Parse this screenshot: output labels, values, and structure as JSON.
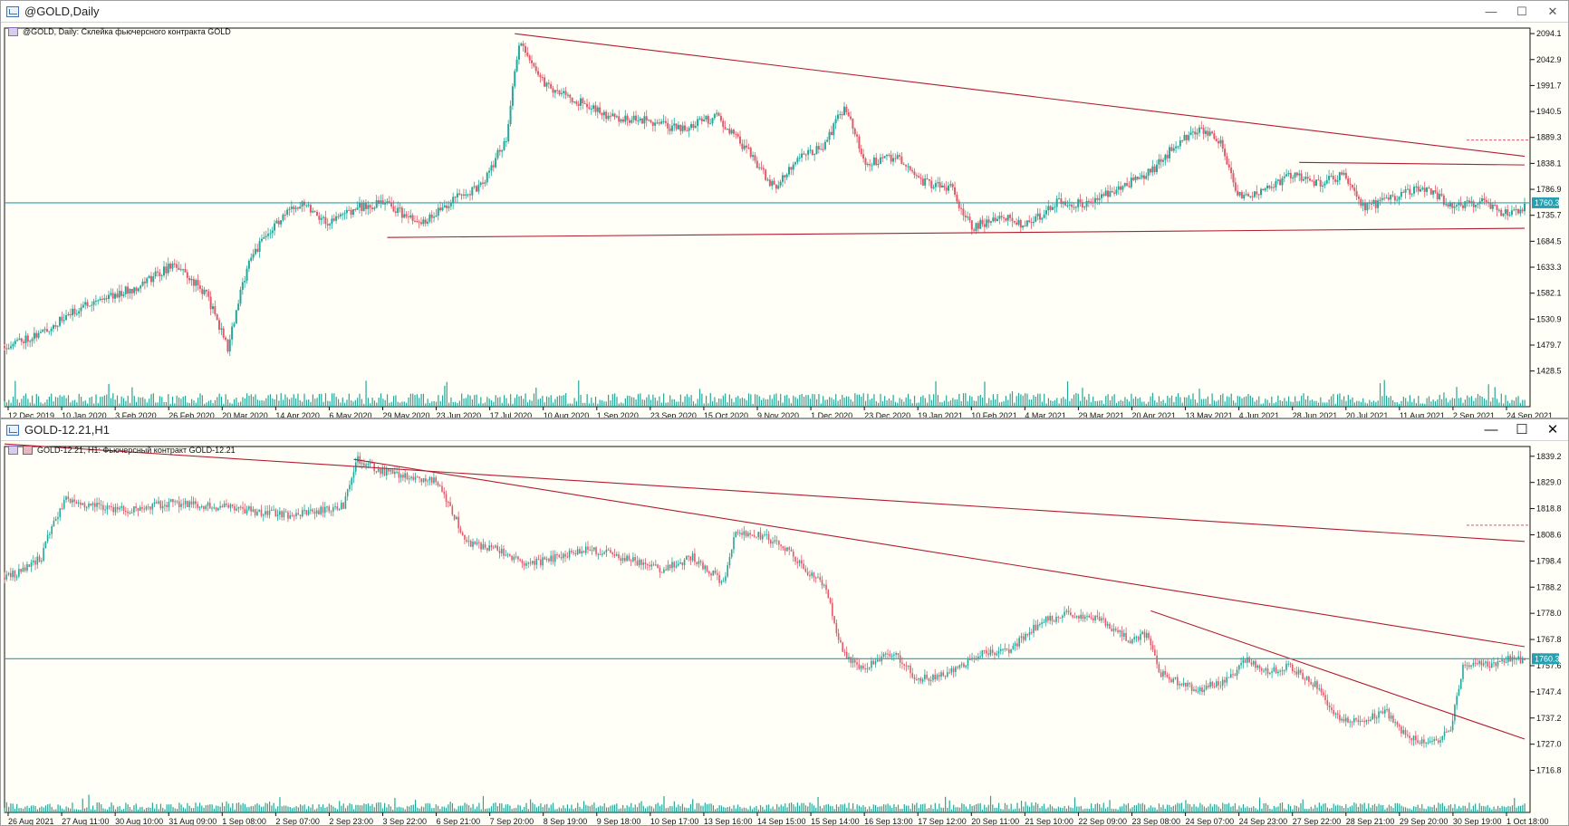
{
  "windows": [
    {
      "title": "@GOLD,Daily",
      "info_label": "@GOLD, Daily:  Склейка фьючерсного контракта GOLD",
      "controls": {
        "minimize": "—",
        "maximize": "☐",
        "close": "✕"
      }
    },
    {
      "title": "GOLD-12.21,H1",
      "info_label": "GOLD-12.21, H1:  Фьючерсный контракт GOLD-12.21",
      "controls": {
        "minimize": "—",
        "maximize": "☐",
        "close": "✕"
      }
    }
  ],
  "colors": {
    "background": "#fffff8",
    "bull": "#26a69a",
    "bear": "#e05a6a",
    "trendline": "#b01e30",
    "price_line": "#26a0b0",
    "price_tag": "#26a0b0",
    "volume": "#26a69a"
  },
  "chart_data": [
    {
      "type": "candlestick",
      "symbol": "@GOLD",
      "timeframe": "Daily",
      "y_ticks": [
        "2094.1",
        "2042.9",
        "1991.7",
        "1940.5",
        "1889.3",
        "1838.1",
        "1786.9",
        "1735.7",
        "1684.5",
        "1633.3",
        "1582.1",
        "1530.9",
        "1479.7",
        "1428.5"
      ],
      "ylim": [
        1410,
        2105
      ],
      "x_ticks": [
        "12 Dec 2019",
        "10 Jan 2020",
        "3 Feb 2020",
        "26 Feb 2020",
        "20 Mar 2020",
        "14 Apr 2020",
        "6 May 2020",
        "29 May 2020",
        "23 Jun 2020",
        "17 Jul 2020",
        "10 Aug 2020",
        "1 Sep 2020",
        "23 Sep 2020",
        "15 Oct 2020",
        "9 Nov 2020",
        "1 Dec 2020",
        "23 Dec 2020",
        "19 Jan 2021",
        "10 Feb 2021",
        "4 Mar 2021",
        "29 Mar 2021",
        "20 Apr 2021",
        "13 May 2021",
        "4 Jun 2021",
        "28 Jun 2021",
        "20 Jul 2021",
        "11 Aug 2021",
        "2 Sep 2021",
        "24 Sep 2021"
      ],
      "current_price": "1760.3",
      "close_path": [
        [
          0,
          1478
        ],
        [
          18,
          1505
        ],
        [
          40,
          1565
        ],
        [
          60,
          1590
        ],
        [
          80,
          1640
        ],
        [
          95,
          1580
        ],
        [
          105,
          1475
        ],
        [
          115,
          1650
        ],
        [
          128,
          1720
        ],
        [
          140,
          1765
        ],
        [
          152,
          1720
        ],
        [
          165,
          1750
        ],
        [
          180,
          1760
        ],
        [
          195,
          1715
        ],
        [
          210,
          1765
        ],
        [
          225,
          1795
        ],
        [
          236,
          1890
        ],
        [
          242,
          2075
        ],
        [
          255,
          1990
        ],
        [
          270,
          1960
        ],
        [
          285,
          1930
        ],
        [
          300,
          1925
        ],
        [
          318,
          1905
        ],
        [
          335,
          1930
        ],
        [
          350,
          1860
        ],
        [
          362,
          1790
        ],
        [
          372,
          1845
        ],
        [
          385,
          1870
        ],
        [
          395,
          1950
        ],
        [
          405,
          1840
        ],
        [
          420,
          1850
        ],
        [
          432,
          1800
        ],
        [
          445,
          1790
        ],
        [
          455,
          1710
        ],
        [
          468,
          1735
        ],
        [
          480,
          1715
        ],
        [
          495,
          1760
        ],
        [
          510,
          1760
        ],
        [
          525,
          1790
        ],
        [
          540,
          1825
        ],
        [
          552,
          1880
        ],
        [
          562,
          1905
        ],
        [
          572,
          1880
        ],
        [
          580,
          1775
        ],
        [
          592,
          1780
        ],
        [
          604,
          1815
        ],
        [
          618,
          1800
        ],
        [
          630,
          1815
        ],
        [
          640,
          1750
        ],
        [
          655,
          1775
        ],
        [
          668,
          1790
        ],
        [
          682,
          1750
        ],
        [
          695,
          1765
        ],
        [
          705,
          1740
        ],
        [
          715,
          1752
        ]
      ],
      "trendlines": [
        {
          "from": [
            240,
            2094
          ],
          "to": [
            715,
            1852
          ]
        },
        {
          "from": [
            180,
            1692
          ],
          "to": [
            715,
            1710
          ]
        },
        {
          "from": [
            609,
            1840
          ],
          "to": [
            715,
            1835
          ]
        }
      ]
    },
    {
      "type": "candlestick",
      "symbol": "GOLD-12.21",
      "timeframe": "H1",
      "y_ticks": [
        "1839.2",
        "1829.0",
        "1818.8",
        "1808.6",
        "1798.4",
        "1788.2",
        "1778.0",
        "1767.8",
        "1757.6",
        "1747.4",
        "1737.2",
        "1727.0",
        "1716.8"
      ],
      "ylim": [
        1711,
        1843
      ],
      "x_ticks": [
        "26 Aug 2021",
        "27 Aug 11:00",
        "30 Aug 10:00",
        "31 Aug 09:00",
        "1 Sep 08:00",
        "2 Sep 07:00",
        "2 Sep 23:00",
        "3 Sep 22:00",
        "6 Sep 21:00",
        "7 Sep 20:00",
        "8 Sep 19:00",
        "9 Sep 18:00",
        "10 Sep 17:00",
        "13 Sep 16:00",
        "14 Sep 15:00",
        "15 Sep 14:00",
        "16 Sep 13:00",
        "17 Sep 12:00",
        "20 Sep 11:00",
        "21 Sep 10:00",
        "22 Sep 09:00",
        "23 Sep 08:00",
        "24 Sep 07:00",
        "24 Sep 23:00",
        "27 Sep 22:00",
        "28 Sep 21:00",
        "29 Sep 20:00",
        "30 Sep 19:00",
        "1 Oct 18:00"
      ],
      "current_price": "1760.3",
      "close_path": [
        [
          0,
          1792
        ],
        [
          10,
          1795
        ],
        [
          18,
          1800
        ],
        [
          24,
          1814
        ],
        [
          30,
          1822
        ],
        [
          45,
          1820
        ],
        [
          60,
          1818
        ],
        [
          80,
          1821
        ],
        [
          100,
          1820
        ],
        [
          120,
          1818
        ],
        [
          140,
          1816
        ],
        [
          165,
          1820
        ],
        [
          172,
          1838
        ],
        [
          185,
          1833
        ],
        [
          200,
          1831
        ],
        [
          210,
          1830
        ],
        [
          218,
          1818
        ],
        [
          225,
          1805
        ],
        [
          240,
          1803
        ],
        [
          255,
          1797
        ],
        [
          270,
          1800
        ],
        [
          285,
          1803
        ],
        [
          300,
          1800
        ],
        [
          320,
          1795
        ],
        [
          335,
          1800
        ],
        [
          350,
          1790
        ],
        [
          356,
          1810
        ],
        [
          370,
          1808
        ],
        [
          380,
          1803
        ],
        [
          390,
          1795
        ],
        [
          400,
          1788
        ],
        [
          408,
          1762
        ],
        [
          418,
          1756
        ],
        [
          432,
          1763
        ],
        [
          445,
          1752
        ],
        [
          460,
          1755
        ],
        [
          475,
          1762
        ],
        [
          490,
          1764
        ],
        [
          505,
          1775
        ],
        [
          520,
          1778
        ],
        [
          535,
          1775
        ],
        [
          548,
          1767
        ],
        [
          556,
          1770
        ],
        [
          562,
          1755
        ],
        [
          580,
          1748
        ],
        [
          595,
          1752
        ],
        [
          605,
          1760
        ],
        [
          615,
          1755
        ],
        [
          625,
          1758
        ],
        [
          638,
          1750
        ],
        [
          648,
          1738
        ],
        [
          660,
          1735
        ],
        [
          672,
          1740
        ],
        [
          683,
          1730
        ],
        [
          695,
          1727
        ],
        [
          704,
          1733
        ],
        [
          710,
          1758
        ],
        [
          722,
          1758
        ],
        [
          732,
          1760
        ],
        [
          740,
          1760
        ]
      ],
      "trendlines": [
        {
          "from": [
            0,
            1844
          ],
          "to": [
            740,
            1806
          ]
        },
        {
          "from": [
            170,
            1838
          ],
          "to": [
            740,
            1765
          ]
        },
        {
          "from": [
            558,
            1779
          ],
          "to": [
            740,
            1729
          ]
        }
      ]
    }
  ]
}
